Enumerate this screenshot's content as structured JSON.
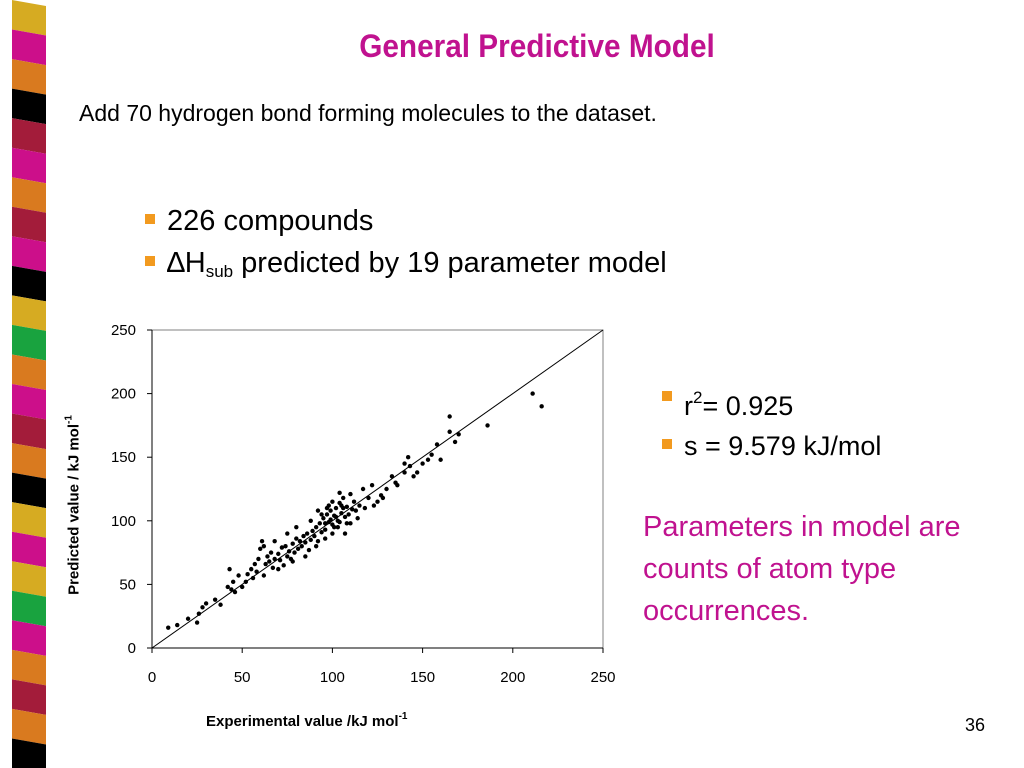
{
  "slide": {
    "title": "General Predictive Model",
    "intro": "Add 70 hydrogen bond forming molecules to the dataset.",
    "bullet1": "226 compounds",
    "bullet2_delta": "∆",
    "bullet2_h": "H",
    "bullet2_sub": "sub",
    "bullet2_rest": " predicted by 19 parameter model",
    "stat_r_label": "r",
    "stat_r_sup": "2",
    "stat_r_value": "= 0.925",
    "stat_s": "s = 9.579 kJ/mol",
    "note": "Parameters in model are counts of atom type occurrences.",
    "page_number": "36"
  },
  "colors": {
    "title": "#c0128f",
    "bullet": "#f29a1f",
    "note": "#c0128f",
    "stripe": [
      "#d6ab22",
      "#cc0f8a",
      "#d97a1f",
      "#000000",
      "#a31c3a",
      "#cc0f8a",
      "#d97a1f",
      "#a31c3a",
      "#cc0f8a",
      "#000000",
      "#d6ab22",
      "#19a33f",
      "#d97a1f",
      "#cc0f8a",
      "#a31c3a",
      "#d97a1f",
      "#000000",
      "#d6ab22",
      "#cc0f8a",
      "#d6ab22",
      "#19a33f",
      "#cc0f8a",
      "#d97a1f",
      "#a31c3a",
      "#d97a1f",
      "#000000"
    ]
  },
  "chart_data": {
    "type": "scatter",
    "title": "",
    "xlabel": "Experimental value /kJ mol",
    "xlabel_sup": "-1",
    "ylabel": "Predicted value / kJ mol",
    "ylabel_sup": "-1",
    "xlim": [
      0,
      250
    ],
    "ylim": [
      0,
      250
    ],
    "xticks": [
      "0",
      "50",
      "100",
      "150",
      "200",
      "250"
    ],
    "yticks": [
      "0",
      "50",
      "100",
      "150",
      "200",
      "250"
    ],
    "grid": false,
    "reference_line": "y = x",
    "points": [
      [
        9,
        16
      ],
      [
        14,
        18
      ],
      [
        20,
        23
      ],
      [
        25,
        20
      ],
      [
        26,
        27
      ],
      [
        28,
        32
      ],
      [
        30,
        35
      ],
      [
        35,
        38
      ],
      [
        38,
        34
      ],
      [
        42,
        48
      ],
      [
        43,
        62
      ],
      [
        44,
        46
      ],
      [
        45,
        52
      ],
      [
        46,
        44
      ],
      [
        48,
        57
      ],
      [
        50,
        48
      ],
      [
        52,
        52
      ],
      [
        53,
        58
      ],
      [
        55,
        62
      ],
      [
        56,
        55
      ],
      [
        57,
        66
      ],
      [
        58,
        60
      ],
      [
        59,
        70
      ],
      [
        60,
        78
      ],
      [
        61,
        84
      ],
      [
        62,
        57
      ],
      [
        63,
        66
      ],
      [
        64,
        72
      ],
      [
        65,
        68
      ],
      [
        66,
        75
      ],
      [
        67,
        63
      ],
      [
        68,
        70
      ],
      [
        70,
        74
      ],
      [
        71,
        69
      ],
      [
        72,
        79
      ],
      [
        73,
        65
      ],
      [
        74,
        80
      ],
      [
        75,
        72
      ],
      [
        76,
        76
      ],
      [
        77,
        70
      ],
      [
        78,
        82
      ],
      [
        79,
        75
      ],
      [
        80,
        86
      ],
      [
        81,
        78
      ],
      [
        82,
        84
      ],
      [
        83,
        80
      ],
      [
        84,
        88
      ],
      [
        85,
        83
      ],
      [
        86,
        90
      ],
      [
        87,
        77
      ],
      [
        88,
        85
      ],
      [
        89,
        92
      ],
      [
        90,
        88
      ],
      [
        91,
        95
      ],
      [
        92,
        84
      ],
      [
        93,
        98
      ],
      [
        94,
        91
      ],
      [
        95,
        102
      ],
      [
        96,
        93
      ],
      [
        97,
        105
      ],
      [
        98,
        99
      ],
      [
        99,
        108
      ],
      [
        100,
        97
      ],
      [
        101,
        104
      ],
      [
        102,
        110
      ],
      [
        103,
        100
      ],
      [
        104,
        114
      ],
      [
        105,
        106
      ],
      [
        106,
        118
      ],
      [
        107,
        103
      ],
      [
        108,
        111
      ],
      [
        110,
        121
      ],
      [
        112,
        115
      ],
      [
        113,
        108
      ],
      [
        115,
        112
      ],
      [
        117,
        125
      ],
      [
        120,
        118
      ],
      [
        122,
        128
      ],
      [
        125,
        115
      ],
      [
        127,
        120
      ],
      [
        130,
        125
      ],
      [
        133,
        135
      ],
      [
        136,
        128
      ],
      [
        140,
        145
      ],
      [
        142,
        150
      ],
      [
        145,
        135
      ],
      [
        150,
        145
      ],
      [
        153,
        148
      ],
      [
        158,
        160
      ],
      [
        165,
        170
      ],
      [
        168,
        162
      ],
      [
        186,
        175
      ],
      [
        211,
        200
      ],
      [
        216,
        190
      ],
      [
        165,
        182
      ],
      [
        70,
        62
      ],
      [
        78,
        68
      ],
      [
        85,
        72
      ],
      [
        91,
        80
      ],
      [
        96,
        86
      ],
      [
        100,
        90
      ],
      [
        103,
        95
      ],
      [
        107,
        90
      ],
      [
        110,
        98
      ],
      [
        62,
        80
      ],
      [
        68,
        84
      ],
      [
        75,
        90
      ],
      [
        80,
        95
      ],
      [
        88,
        100
      ],
      [
        92,
        108
      ],
      [
        98,
        112
      ],
      [
        104,
        122
      ],
      [
        106,
        110
      ],
      [
        100,
        115
      ],
      [
        97,
        110
      ],
      [
        94,
        105
      ],
      [
        101,
        95
      ],
      [
        99,
        101
      ],
      [
        102,
        103
      ],
      [
        96,
        98
      ],
      [
        104,
        99
      ],
      [
        105,
        112
      ],
      [
        108,
        98
      ],
      [
        109,
        105
      ],
      [
        111,
        109
      ],
      [
        114,
        102
      ],
      [
        118,
        110
      ],
      [
        123,
        112
      ],
      [
        128,
        118
      ],
      [
        135,
        130
      ],
      [
        140,
        138
      ],
      [
        143,
        143
      ],
      [
        147,
        138
      ],
      [
        155,
        152
      ],
      [
        160,
        148
      ],
      [
        170,
        168
      ]
    ]
  }
}
